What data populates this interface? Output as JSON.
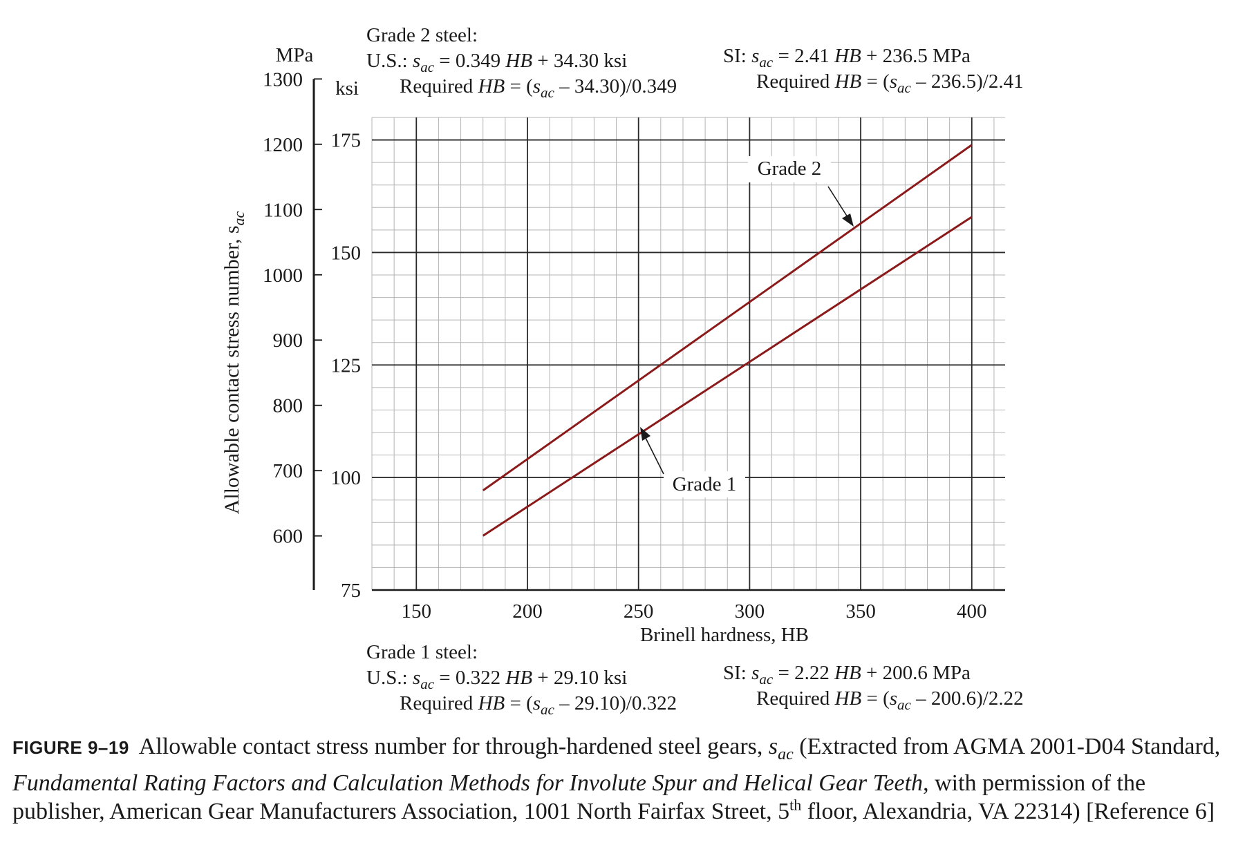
{
  "chart_data": {
    "type": "line",
    "title": "",
    "xlabel": "Brinell hardness, HB",
    "ylabel": "Allowable contact stress number, s",
    "ylabel_sub": "ac",
    "x_ticks": [
      "150",
      "200",
      "250",
      "300",
      "350",
      "400"
    ],
    "xlim": [
      130,
      415
    ],
    "ylim_ksi": [
      75,
      180
    ],
    "y_ticks_ksi": [
      "75",
      "100",
      "125",
      "150",
      "175"
    ],
    "y_ticks_mpa": [
      "600",
      "700",
      "800",
      "900",
      "1000",
      "1100",
      "1200",
      "1300"
    ],
    "unit_mpa": "MPa",
    "unit_ksi": "ksi",
    "grid": true,
    "line_color": "#8b1a1a",
    "series": [
      {
        "name": "Grade 1",
        "x": [
          180,
          400
        ],
        "y": [
          87.06,
          157.9
        ]
      },
      {
        "name": "Grade 2",
        "x": [
          180,
          400
        ],
        "y": [
          97.12,
          173.9
        ]
      }
    ]
  },
  "grade2": {
    "heading": "Grade 2 steel:",
    "us_prefix": "U.S.: ",
    "us_suffix": " = 0.349 ",
    "us_tail": " + 34.30 ksi",
    "us_req_prefix": "Required ",
    "us_req_mid": " = (",
    "us_req_tail": " – 34.30)/0.349",
    "si_prefix": "SI: ",
    "si_suffix": " = 2.41 ",
    "si_tail": " + 236.5 MPa",
    "si_req_prefix": "Required ",
    "si_req_mid": " = (",
    "si_req_tail": " – 236.5)/2.41"
  },
  "grade1": {
    "heading": "Grade 1 steel:",
    "us_prefix": "U.S.: ",
    "us_suffix": " = 0.322 ",
    "us_tail": " + 29.10 ksi",
    "us_req_prefix": "Required ",
    "us_req_mid": " = (",
    "us_req_tail": " – 29.10)/0.322",
    "si_prefix": "SI: ",
    "si_suffix": " = 2.22 ",
    "si_tail": " + 200.6 MPa",
    "si_req_prefix": "Required ",
    "si_req_mid": " = (",
    "si_req_tail": " – 200.6)/2.22"
  },
  "sym": {
    "s": "s",
    "ac": "ac",
    "hb": "HB"
  },
  "caption": {
    "label": "FIGURE 9–19",
    "text1": "Allowable contact stress number for through-hardened steel gears, ",
    "text2": " (Extracted from AGMA 2001-D04 Standard, ",
    "italic": "Fundamental Rating Factors and Calculation Methods for Involute Spur and Helical Gear Teeth",
    "text3": ", with permission of the publisher, American Gear Manufacturers Association, 1001 North Fairfax Street, 5",
    "sup": "th",
    "text4": " floor, Alexandria, VA 22314) [Reference 6]"
  }
}
